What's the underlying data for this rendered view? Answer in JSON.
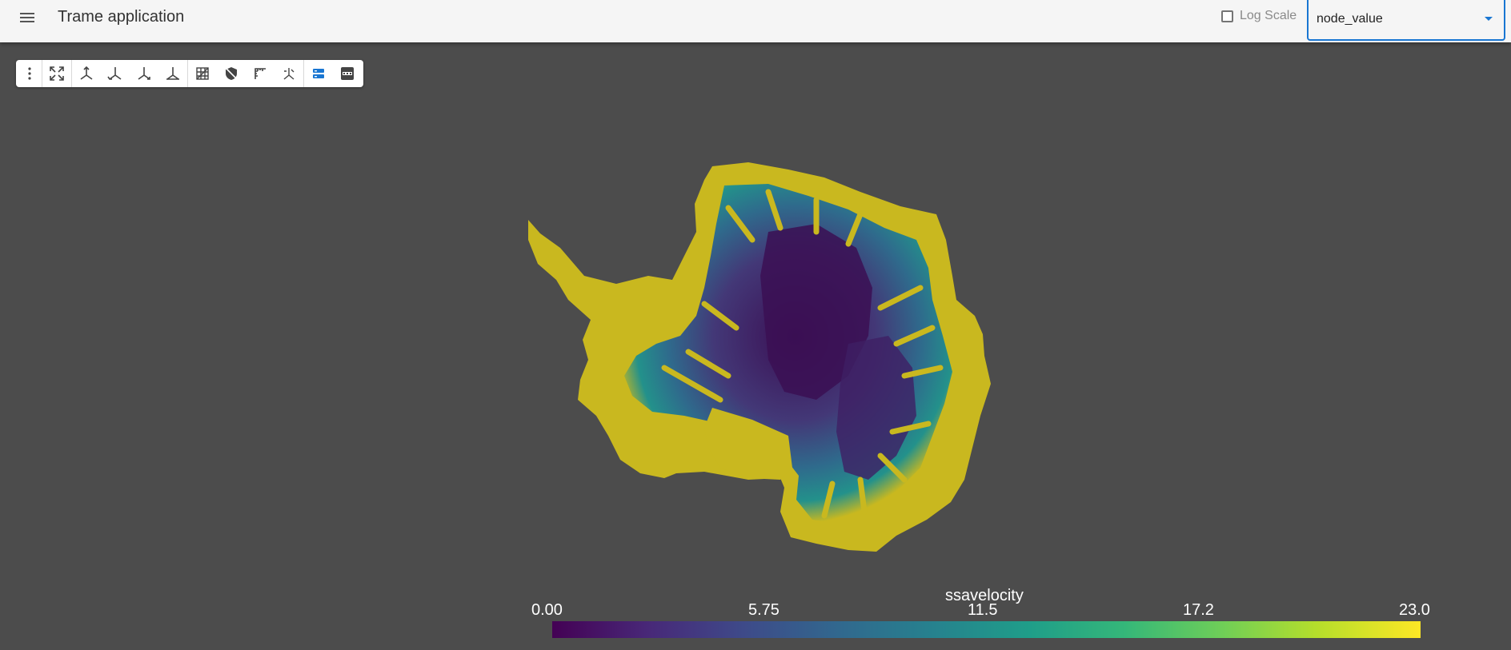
{
  "header": {
    "title": "Trame application",
    "menu_icon": "hamburger-menu-icon",
    "log_scale_label": "Log Scale",
    "log_scale_checked": false,
    "scalars_select": {
      "value": "node_value"
    }
  },
  "toolbar": {
    "buttons": [
      {
        "name": "more-options-icon"
      },
      {
        "name": "reset-camera-icon"
      },
      {
        "name": "view-axis-x-icon"
      },
      {
        "name": "view-axis-y-icon"
      },
      {
        "name": "view-axis-z-icon"
      },
      {
        "name": "view-axis-iso-icon"
      },
      {
        "name": "grid-icon"
      },
      {
        "name": "hide-icon"
      },
      {
        "name": "ruler-icon"
      },
      {
        "name": "axes-icon"
      },
      {
        "name": "toggle-panel-icon"
      },
      {
        "name": "screenshot-png-icon"
      }
    ]
  },
  "colorbar": {
    "title": "ssavelocity",
    "ticks": [
      "0.00",
      "5.75",
      "11.5",
      "17.2",
      "23.0"
    ],
    "range": [
      0,
      23
    ],
    "colormap": "viridis"
  },
  "colors": {
    "background": "#4c4c4c",
    "appbar": "#f5f5f5",
    "accent": "#1976d2",
    "fast_flow": "#c9b81f",
    "slow_flow": "#3b0f54"
  }
}
